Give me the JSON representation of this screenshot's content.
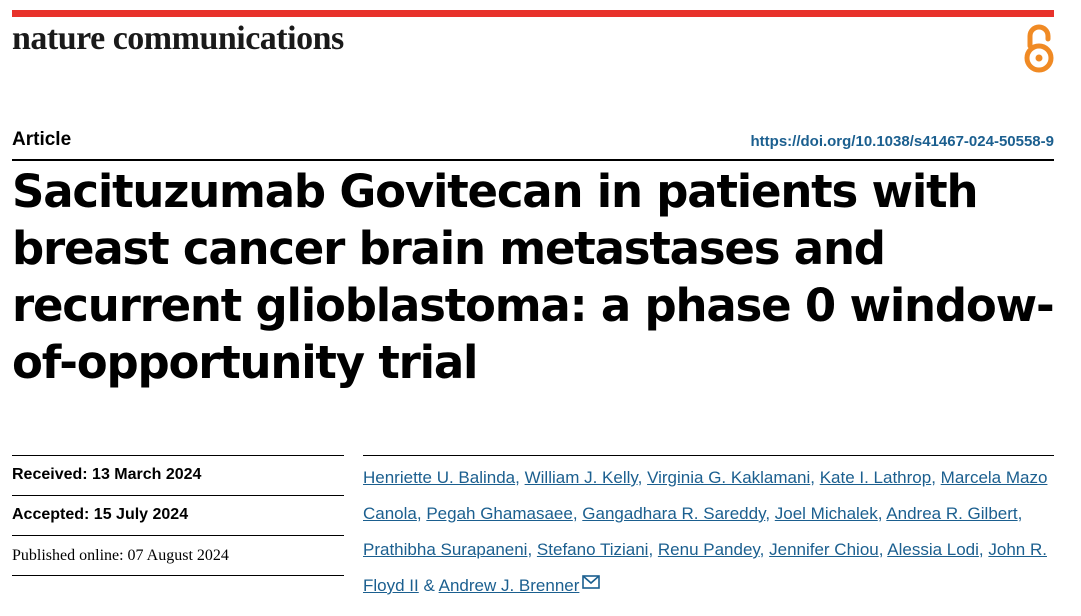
{
  "journal": {
    "name": "nature communications",
    "accent": "#e8322b"
  },
  "header": {
    "article_type": "Article",
    "doi": "https://doi.org/10.1038/s41467-024-50558-9"
  },
  "title": "Sacituzumab Govitecan in patients with breast cancer brain metastases and recurrent glioblastoma: a phase 0 window-of-opportunity trial",
  "dates": {
    "received": "Received: 13 March 2024",
    "accepted": "Accepted: 15 July 2024",
    "published": "Published online: 07 August 2024"
  },
  "authors": [
    "Henriette U. Balinda",
    "William J. Kelly",
    "Virginia G. Kaklamani",
    "Kate I. Lathrop",
    "Marcela Mazo Canola",
    "Pegah Ghamasaee",
    "Gangadhara R. Sareddy",
    "Joel Michalek",
    "Andrea R. Gilbert",
    "Prathibha Surapaneni",
    "Stefano Tiziani",
    "Renu Pandey",
    "Jennifer Chiou",
    "Alessia Lodi",
    "John R. Floyd II",
    "Andrew J. Brenner"
  ],
  "authors_separator": ", ",
  "authors_last_separator": " & ",
  "icons": {
    "open_access": "open-access-icon",
    "email": "email-icon"
  },
  "colors": {
    "link": "#1b5f8f",
    "open_access": "#f08a24"
  }
}
